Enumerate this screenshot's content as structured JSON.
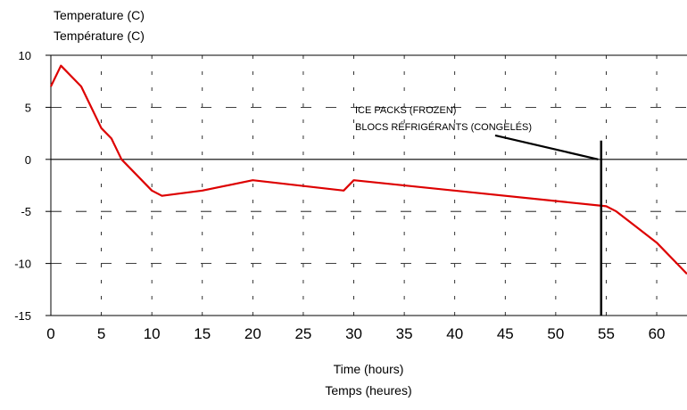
{
  "chart_data": {
    "type": "line",
    "title": "",
    "ylabel": [
      "Temperature (C)",
      "Température (C)"
    ],
    "xlabel": [
      "Time (hours)",
      "Temps (heures)"
    ],
    "xlim": [
      0,
      63
    ],
    "ylim": [
      -15,
      10
    ],
    "xticks": [
      0,
      5,
      10,
      15,
      20,
      25,
      30,
      35,
      40,
      45,
      50,
      55,
      60
    ],
    "yticks": [
      10,
      5,
      0,
      -5,
      -10,
      -15
    ],
    "xtick_labels": [
      "0",
      "5",
      "10",
      "15",
      "20",
      "25",
      "30",
      "35",
      "40",
      "45",
      "50",
      "55",
      "60"
    ],
    "ytick_labels": [
      "10",
      "5",
      "0",
      "-5",
      "-10",
      "-15"
    ],
    "grid": "dashed",
    "zero_line": true,
    "series": [
      {
        "color": "#dd0000",
        "x": [
          0,
          1,
          3,
          5,
          6,
          7,
          10,
          11,
          15,
          20,
          29,
          30,
          55,
          56,
          60,
          63
        ],
        "y": [
          7,
          9,
          7,
          3,
          2,
          0,
          -3,
          -3.5,
          -3,
          -2,
          -3,
          -2,
          -4.5,
          -5,
          -8,
          -11
        ]
      }
    ],
    "vertical_marker": {
      "x": 54.5,
      "y_top": 1.8,
      "color": "#000000"
    },
    "annotation": {
      "lines": [
        "ICE PACKS (FROZEN)",
        "BLOCS RÉFRIGÉRANTS (CONGELÉS)"
      ],
      "pointer_start": [
        44,
        2.3
      ],
      "pointer_end": [
        54.2,
        0
      ]
    }
  }
}
